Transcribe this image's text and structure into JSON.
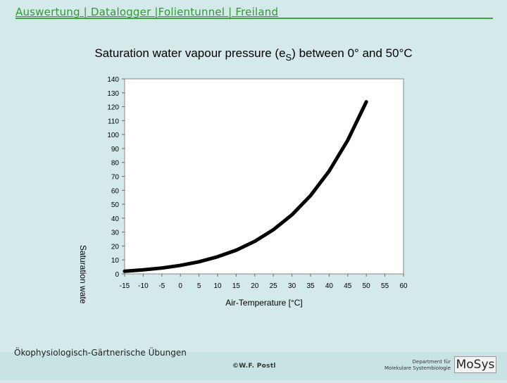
{
  "header": {
    "title": "Auswertung | Datalogger |Folientunnel | Freiland"
  },
  "chart_data": {
    "type": "line",
    "title": "Saturation water vapour pressure (e",
    "title_sub": "S",
    "title_rest": ") between 0° and 50°C",
    "xlabel": "Air-Temperature [°C]",
    "ylabel": "Saturation wate",
    "xlim": [
      -15,
      60
    ],
    "ylim": [
      0,
      140
    ],
    "x_ticks": [
      "-15",
      "-10",
      "-5",
      "0",
      "5",
      "10",
      "15",
      "20",
      "25",
      "30",
      "35",
      "40",
      "45",
      "50",
      "55",
      "60"
    ],
    "y_ticks": [
      "0",
      "10",
      "20",
      "30",
      "40",
      "50",
      "60",
      "70",
      "80",
      "90",
      "100",
      "110",
      "120",
      "130",
      "140"
    ],
    "grid": false,
    "series": [
      {
        "color": "#000000",
        "x": [
          -15,
          -10,
          -5,
          0,
          5,
          10,
          15,
          20,
          25,
          30,
          35,
          40,
          45,
          50
        ],
        "y": [
          1.9,
          2.9,
          4.2,
          6.1,
          8.7,
          12.3,
          17.0,
          23.4,
          31.7,
          42.4,
          56.2,
          73.8,
          95.9,
          123.5
        ]
      }
    ]
  },
  "footer": {
    "left_text": "Ökophysiologisch-Gärtnerische Übungen",
    "center_text": "©W.F. Postl",
    "dept_line1": "Department für",
    "dept_line2": "Molekulare Systembiologie",
    "logo_text": "MoSys"
  }
}
